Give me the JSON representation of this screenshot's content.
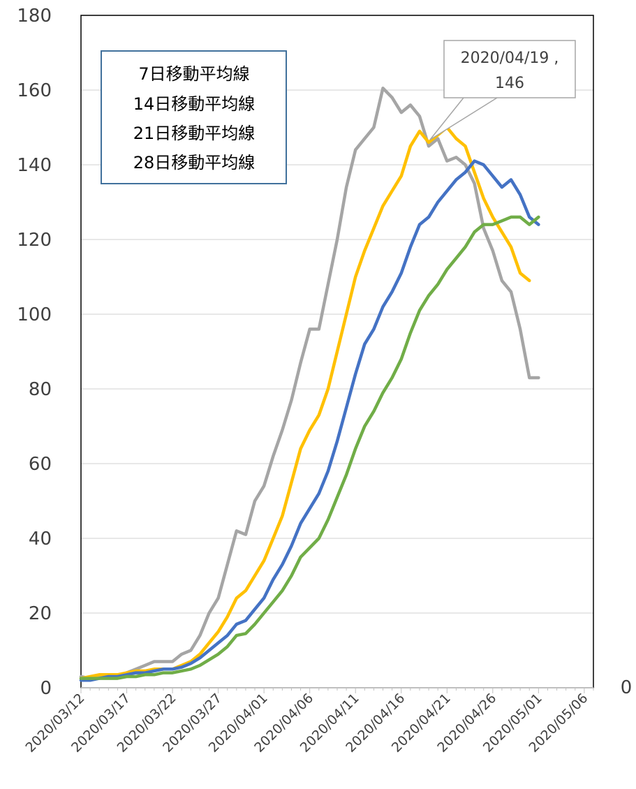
{
  "chart_data": {
    "type": "line",
    "title": "",
    "xlabel": "",
    "ylabel": "",
    "x_start": "2020/03/12",
    "x_tick_labels": [
      "2020/03/12",
      "2020/03/17",
      "2020/03/22",
      "2020/03/27",
      "2020/04/01",
      "2020/04/06",
      "2020/04/11",
      "2020/04/16",
      "2020/04/21",
      "2020/04/26",
      "2020/05/01",
      "2020/05/06"
    ],
    "xlim": [
      "2020/03/12",
      "2020/05/07"
    ],
    "ylim": [
      0,
      180
    ],
    "y_ticks": [
      0,
      20,
      40,
      60,
      80,
      100,
      120,
      140,
      160,
      180
    ],
    "secondary_y_label": "0",
    "grid": true,
    "legend": {
      "placement": "top-left",
      "entries": [
        "7日移動平均線",
        "14日移動平均線",
        "21日移動平均線",
        "28日移動平均線"
      ]
    },
    "annotation": {
      "lines": [
        "2020/04/19 ,",
        "146"
      ],
      "x": "2020/04/19",
      "y": 146
    },
    "series": [
      {
        "name": "7日移動平均線",
        "color": "#a5a5a5",
        "values": [
          3,
          2.5,
          3,
          3,
          3,
          4,
          5,
          6,
          7,
          7,
          7,
          9,
          10,
          14,
          20,
          24,
          33,
          42,
          41,
          50,
          54,
          62,
          69,
          77,
          87,
          96,
          96,
          108,
          120,
          134,
          144,
          147,
          150,
          160.5,
          158,
          154,
          156,
          153,
          145,
          147,
          141,
          142,
          140,
          135,
          123,
          117,
          109,
          106,
          96,
          83,
          83
        ]
      },
      {
        "name": "14日移動平均線",
        "color": "#ffc000",
        "values": [
          2.5,
          3,
          3.5,
          3.5,
          3.5,
          4,
          4.5,
          4.5,
          5,
          5,
          5,
          6,
          7,
          9,
          12,
          15,
          19,
          24,
          26,
          30,
          34,
          40,
          46,
          55,
          64,
          69,
          73,
          80,
          90,
          100,
          110,
          117,
          123,
          129,
          133,
          137,
          145,
          149,
          146,
          148,
          150,
          147,
          145,
          138,
          131,
          126,
          122,
          118,
          111,
          109
        ]
      },
      {
        "name": "21日移動平均線",
        "color": "#4472c4",
        "values": [
          2,
          2,
          2.5,
          3,
          3,
          3.5,
          4,
          4,
          4.5,
          5,
          5,
          5.5,
          6.5,
          8,
          10,
          12,
          14,
          17,
          18,
          21,
          24,
          29,
          33,
          38,
          44,
          48,
          52,
          58,
          66,
          75,
          84,
          92,
          96,
          102,
          106,
          111,
          118,
          124,
          126,
          130,
          133,
          136,
          138,
          141,
          140,
          137,
          134,
          136,
          132,
          126,
          124
        ]
      },
      {
        "name": "28日移動平均線",
        "color": "#70ad47",
        "values": [
          2.5,
          2.5,
          2.5,
          2.5,
          2.5,
          3,
          3,
          3.5,
          3.5,
          4,
          4,
          4.5,
          5,
          6,
          7.5,
          9,
          11,
          14,
          14.5,
          17,
          20,
          23,
          26,
          30,
          35,
          37.5,
          40,
          45,
          51,
          57,
          64,
          70,
          74,
          79,
          83,
          88,
          95,
          101,
          105,
          108,
          112,
          115,
          118,
          122,
          124,
          124,
          125,
          126,
          126,
          124,
          126
        ]
      }
    ]
  }
}
